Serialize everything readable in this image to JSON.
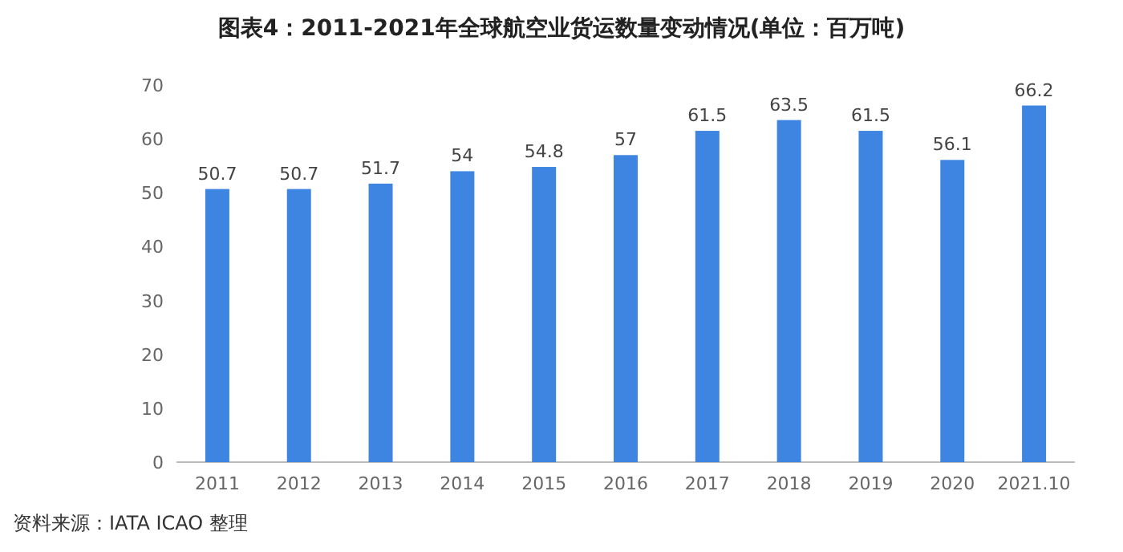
{
  "chart_data": {
    "type": "bar",
    "title": "图表4：2011-2021年全球航空业货运数量变动情况(单位：百万吨)",
    "categories": [
      "2011",
      "2012",
      "2013",
      "2014",
      "2015",
      "2016",
      "2017",
      "2018",
      "2019",
      "2020",
      "2021.10"
    ],
    "values": [
      50.7,
      50.7,
      51.7,
      54,
      54.8,
      57,
      61.5,
      63.5,
      61.5,
      56.1,
      66.2
    ],
    "color": "#3d85e0",
    "ylim": [
      0,
      70
    ],
    "yticks": [
      0,
      10,
      20,
      30,
      40,
      50,
      60,
      70
    ],
    "data_labels": true,
    "annotations": [
      "资料来源：IATA ICAO 整理"
    ]
  }
}
